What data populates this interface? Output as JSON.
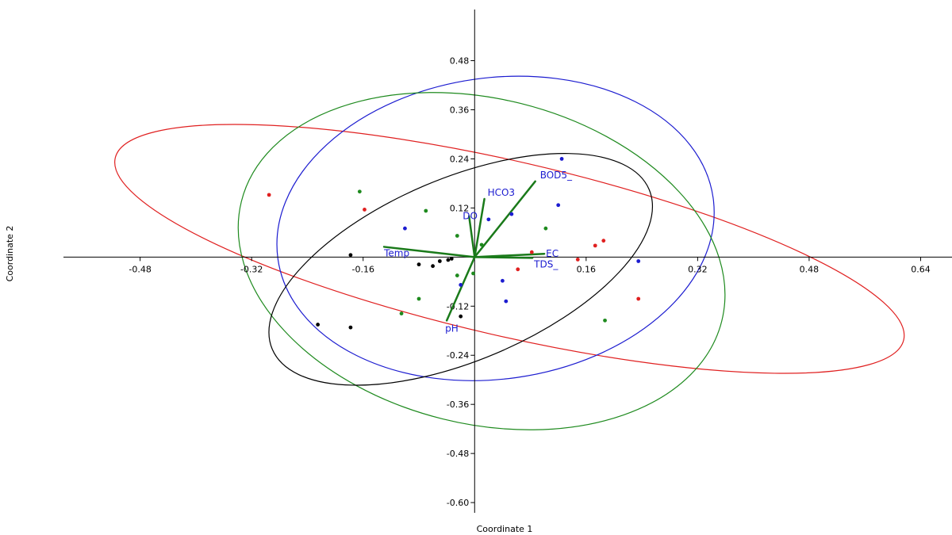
{
  "chart_data": {
    "type": "scatter",
    "xlabel": "Coordinate 1",
    "ylabel": "Coordinate 2",
    "xlim": [
      -0.59,
      0.685
    ],
    "ylim": [
      -0.625,
      0.605
    ],
    "grid": false,
    "x_ticks": [
      -0.48,
      -0.32,
      -0.16,
      0.16,
      0.32,
      0.48,
      0.64
    ],
    "x_tick_labels": [
      "-0.48",
      "-0.32",
      "-0.16",
      "0.16",
      "0.32",
      "0.48",
      "0.64"
    ],
    "y_ticks": [
      0.48,
      0.36,
      0.24,
      0.12,
      -0.12,
      -0.24,
      -0.36,
      -0.48,
      -0.6
    ],
    "y_tick_labels": [
      "0.48",
      "0.36",
      "0.24",
      "0.12",
      "-0.12",
      "-0.24",
      "-0.36",
      "-0.48",
      "-0.60"
    ],
    "series": [
      {
        "color": "#e02020",
        "points": [
          [
            -0.295,
            0.152
          ],
          [
            -0.158,
            0.116
          ],
          [
            0.082,
            0.012
          ],
          [
            0.062,
            -0.03
          ],
          [
            0.148,
            -0.006
          ],
          [
            0.173,
            0.028
          ],
          [
            0.185,
            0.04
          ],
          [
            0.235,
            -0.102
          ]
        ]
      },
      {
        "color": "#1c1cd0",
        "points": [
          [
            0.125,
            0.24
          ],
          [
            0.12,
            0.127
          ],
          [
            0.053,
            0.105
          ],
          [
            0.02,
            0.092
          ],
          [
            -0.1,
            0.07
          ],
          [
            -0.02,
            -0.068
          ],
          [
            0.04,
            -0.058
          ],
          [
            0.045,
            -0.108
          ],
          [
            0.235,
            -0.01
          ]
        ]
      },
      {
        "color": "#1e8a1e",
        "points": [
          [
            -0.165,
            0.16
          ],
          [
            -0.07,
            0.113
          ],
          [
            -0.025,
            0.052
          ],
          [
            0.01,
            0.03
          ],
          [
            0.102,
            0.07
          ],
          [
            -0.025,
            -0.045
          ],
          [
            -0.002,
            -0.04
          ],
          [
            -0.08,
            -0.102
          ],
          [
            -0.105,
            -0.138
          ],
          [
            0.187,
            -0.155
          ]
        ]
      },
      {
        "color": "#000000",
        "points": [
          [
            -0.178,
            0.005
          ],
          [
            -0.08,
            -0.018
          ],
          [
            -0.05,
            -0.01
          ],
          [
            -0.038,
            -0.007
          ],
          [
            -0.033,
            -0.004
          ],
          [
            -0.06,
            -0.022
          ],
          [
            -0.02,
            -0.145
          ],
          [
            -0.225,
            -0.165
          ],
          [
            -0.178,
            -0.172
          ]
        ]
      }
    ],
    "ellipses": [
      {
        "color": "#e02020",
        "center": [
          0.05,
          0.02
        ],
        "rx_px": 510,
        "ry_px": 110,
        "rotation_deg": 13
      },
      {
        "color": "#1c1cd0",
        "center": [
          0.03,
          0.07
        ],
        "rx_px": 277,
        "ry_px": 190,
        "rotation_deg": -8
      },
      {
        "color": "#1e8a1e",
        "center": [
          0.01,
          -0.01
        ],
        "rx_px": 312,
        "ry_px": 205,
        "rotation_deg": 14
      },
      {
        "color": "#000000",
        "center": [
          -0.02,
          -0.03
        ],
        "rx_px": 258,
        "ry_px": 115,
        "rotation_deg": -23
      }
    ],
    "vectors": [
      {
        "name": "BOD5_",
        "end": [
          0.087,
          0.185
        ]
      },
      {
        "name": "HCO3",
        "end": [
          0.014,
          0.142
        ]
      },
      {
        "name": "DO",
        "end": [
          -0.008,
          0.1
        ]
      },
      {
        "name": "Temp",
        "end": [
          -0.13,
          0.025
        ]
      },
      {
        "name": "EC",
        "end": [
          0.1,
          0.008
        ]
      },
      {
        "name": "TDS_",
        "end": [
          0.083,
          -0.002
        ]
      },
      {
        "name": "pH",
        "end": [
          -0.04,
          -0.155
        ]
      }
    ],
    "vector_color": "#1a7a1a",
    "vector_label_color": "#1c1cd0"
  }
}
